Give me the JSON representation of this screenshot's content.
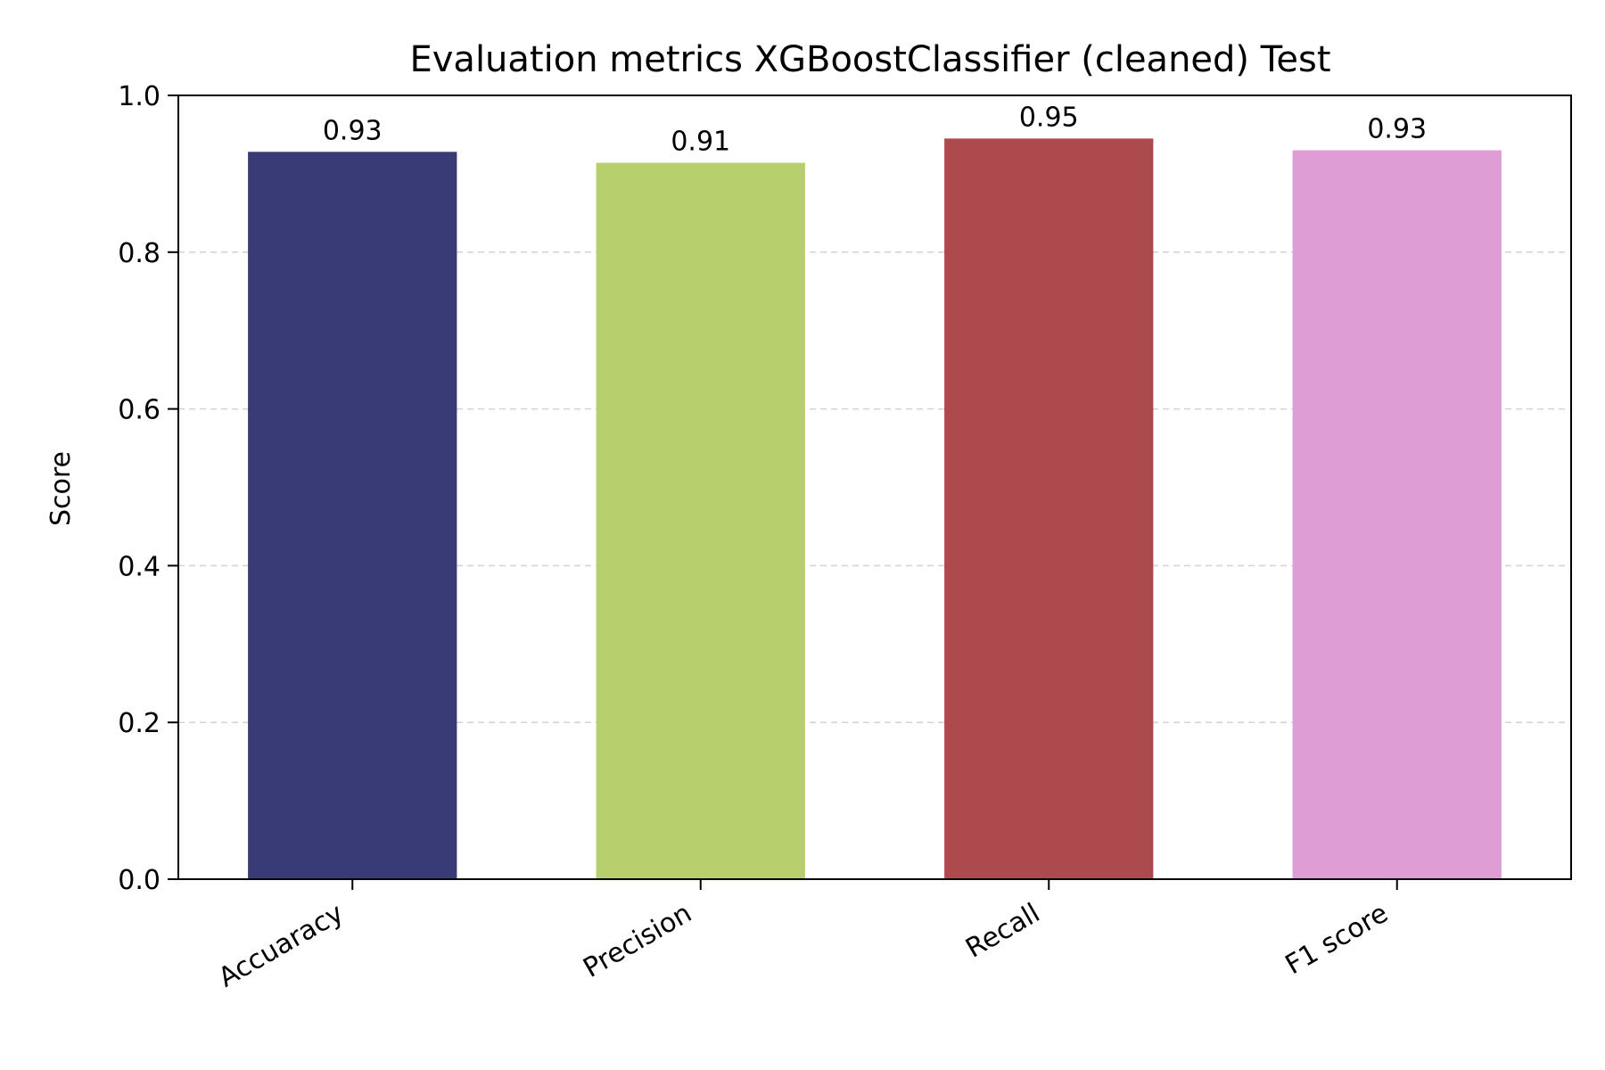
{
  "chart_data": {
    "type": "bar",
    "title": "Evaluation metrics XGBoostClassifier (cleaned) Test",
    "xlabel": "",
    "ylabel": "Score",
    "ylim": [
      0,
      1.0
    ],
    "yticks": [
      "0.0",
      "0.2",
      "0.4",
      "0.6",
      "0.8",
      "1.0"
    ],
    "grid": "y-dashed",
    "categories": [
      "Accuaracy",
      "Precision",
      "Recall",
      "F1 score"
    ],
    "values": [
      0.928,
      0.914,
      0.945,
      0.93
    ],
    "value_labels": [
      "0.93",
      "0.91",
      "0.95",
      "0.93"
    ],
    "colors": [
      "#393b76",
      "#b7cf6c",
      "#ad4a4d",
      "#de9ed5"
    ]
  }
}
